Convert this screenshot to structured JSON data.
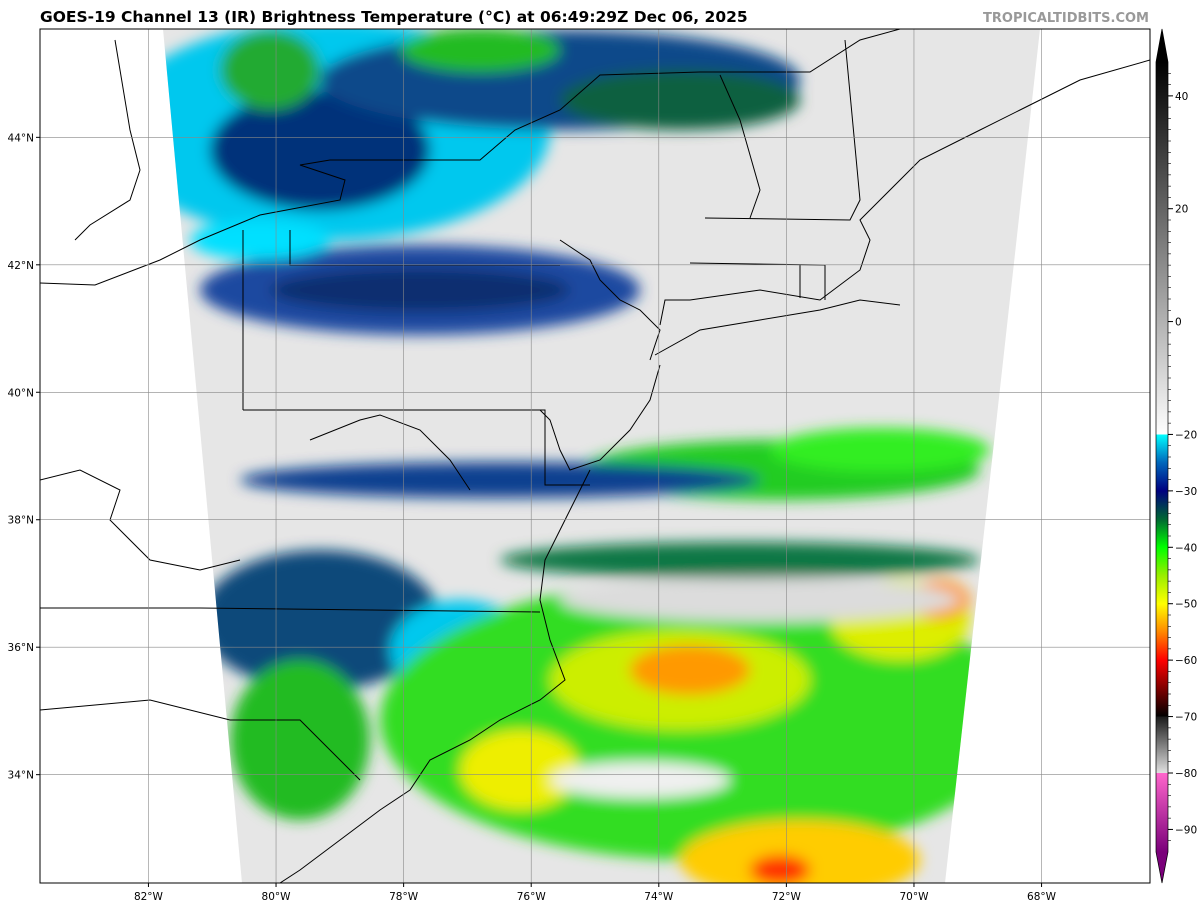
{
  "title": "GOES-19 Channel 13 (IR) Brightness Temperature (°C) at 06:49:29Z Dec 06, 2025",
  "credit": "TROPICALTIDBITS.COM",
  "map": {
    "lat_labels": [
      {
        "v": 44,
        "t": "44°N"
      },
      {
        "v": 42,
        "t": "42°N"
      },
      {
        "v": 40,
        "t": "40°N"
      },
      {
        "v": 38,
        "t": "38°N"
      },
      {
        "v": 36,
        "t": "36°N"
      },
      {
        "v": 34,
        "t": "34°N"
      }
    ],
    "lon_labels": [
      {
        "v": -82,
        "t": "82°W"
      },
      {
        "v": -80,
        "t": "80°W"
      },
      {
        "v": -78,
        "t": "78°W"
      },
      {
        "v": -76,
        "t": "76°W"
      },
      {
        "v": -74,
        "t": "74°W"
      },
      {
        "v": -72,
        "t": "72°W"
      },
      {
        "v": -70,
        "t": "70°W"
      },
      {
        "v": -68,
        "t": "68°W"
      }
    ],
    "lat_range": [
      32.3,
      45.7
    ],
    "lon_range": [
      -83.7,
      -66.3
    ]
  },
  "colorbar": {
    "range": [
      -94,
      46
    ],
    "ticks": [
      "40",
      "20",
      "0",
      "−20",
      "−30",
      "−40",
      "−50",
      "−60",
      "−70",
      "−80",
      "−90"
    ],
    "tick_values": [
      40,
      20,
      0,
      -20,
      -30,
      -40,
      -50,
      -60,
      -70,
      -80,
      -90
    ],
    "stops": [
      {
        "v": -94,
        "c": "#7a007a"
      },
      {
        "v": -80.01,
        "c": "#ff66cc"
      },
      {
        "v": -80,
        "c": "#e0e0e0"
      },
      {
        "v": -70.01,
        "c": "#1a1a1a"
      },
      {
        "v": -70,
        "c": "#000000"
      },
      {
        "v": -60,
        "c": "#ff0000"
      },
      {
        "v": -55,
        "c": "#ff8800"
      },
      {
        "v": -50,
        "c": "#ffff00"
      },
      {
        "v": -45,
        "c": "#99ee00"
      },
      {
        "v": -40,
        "c": "#00ff00"
      },
      {
        "v": -35,
        "c": "#006633"
      },
      {
        "v": -30,
        "c": "#000080"
      },
      {
        "v": -25,
        "c": "#0066bb"
      },
      {
        "v": -20.01,
        "c": "#00ffff"
      },
      {
        "v": -20,
        "c": "#ffffff"
      },
      {
        "v": 46,
        "c": "#000000"
      }
    ]
  }
}
